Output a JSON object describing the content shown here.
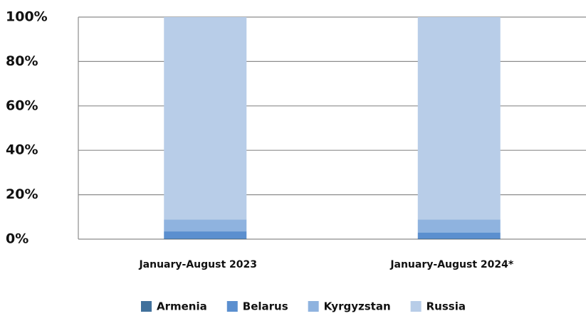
{
  "chart_data": {
    "type": "bar",
    "stacked": true,
    "categories": [
      "January-August 2023",
      "January-August 2024*"
    ],
    "series": [
      {
        "name": "Armenia",
        "color": "#41719c",
        "values": [
          0.3,
          0.3
        ]
      },
      {
        "name": "Belarus",
        "color": "#5b8fcf",
        "values": [
          3.2,
          2.7
        ]
      },
      {
        "name": "Kyrgyzstan",
        "color": "#8fb3df",
        "values": [
          5.3,
          5.8
        ]
      },
      {
        "name": "Russia",
        "color": "#b8cde8",
        "values": [
          91.2,
          91.2
        ]
      }
    ],
    "ylim": [
      0,
      100
    ],
    "yticks": [
      {
        "value": 0,
        "label": "0%"
      },
      {
        "value": 20,
        "label": "20%"
      },
      {
        "value": 40,
        "label": "40%"
      },
      {
        "value": 60,
        "label": "60%"
      },
      {
        "value": 80,
        "label": "80%"
      },
      {
        "value": 100,
        "label": "100%"
      }
    ],
    "grid": true,
    "legend": "bottom"
  }
}
